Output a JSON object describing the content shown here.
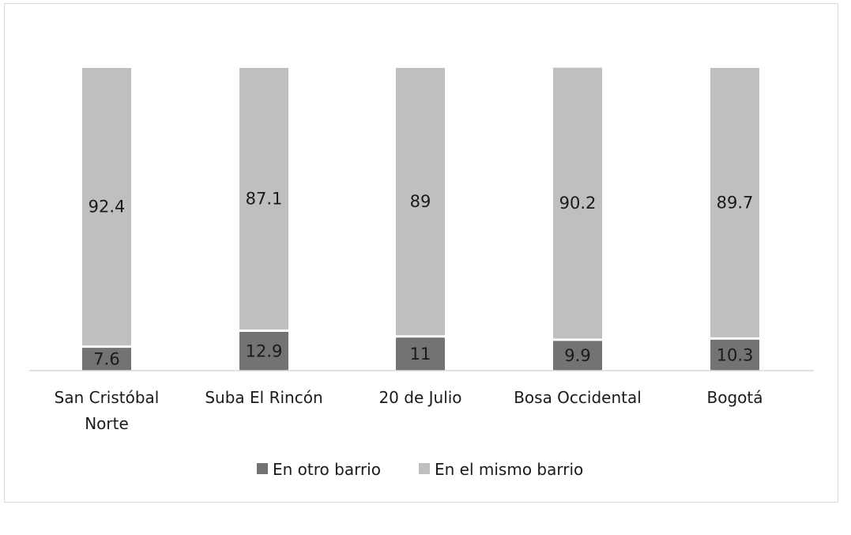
{
  "chart_data": {
    "type": "bar",
    "stacked": true,
    "categories": [
      [
        "San Cristóbal",
        "Norte"
      ],
      [
        "Suba El Rincón"
      ],
      [
        "20 de Julio"
      ],
      [
        "Bosa Occidental"
      ],
      [
        "Bogotá"
      ]
    ],
    "series": [
      {
        "name": "En otro barrio",
        "color": "#737373",
        "values": [
          7.6,
          12.9,
          11,
          9.9,
          10.3
        ],
        "labels": [
          "7.6",
          "12.9",
          "11",
          "9.9",
          "10.3"
        ]
      },
      {
        "name": "En el mismo barrio",
        "color": "#bfbfbf",
        "values": [
          92.4,
          87.1,
          89,
          90.2,
          89.7
        ],
        "labels": [
          "92.4",
          "87.1",
          "89",
          "90.2",
          "89.7"
        ]
      }
    ],
    "ylim": [
      0,
      100
    ],
    "grid": false,
    "legend_position": "bottom"
  }
}
